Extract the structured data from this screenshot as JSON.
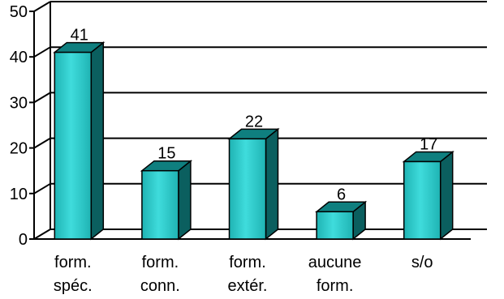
{
  "chart_data": {
    "type": "bar",
    "categories": [
      [
        "form.",
        "spéc."
      ],
      [
        "form.",
        "conn."
      ],
      [
        "form.",
        "extér."
      ],
      [
        "aucune",
        "form."
      ],
      [
        "s/o"
      ]
    ],
    "values": [
      41,
      15,
      22,
      6,
      17
    ],
    "data_labels": [
      "41",
      "15",
      "22",
      "6",
      "17"
    ],
    "ylim": [
      0,
      50
    ],
    "yticks": [
      "0",
      "10",
      "20",
      "30",
      "40",
      "50"
    ],
    "grid": true,
    "style": "3d",
    "colors": {
      "bar_front": "#1fb3b3",
      "bar_front_light": "#3fdcdc",
      "bar_side": "#0b5f5f",
      "bar_top": "#0f7f7f",
      "grid": "#000000",
      "outline": "#000000"
    }
  }
}
